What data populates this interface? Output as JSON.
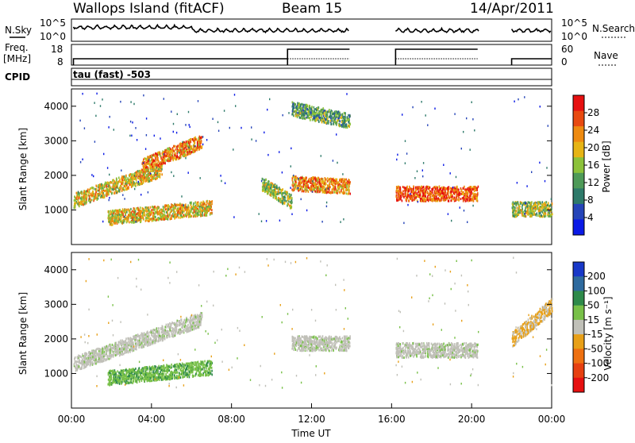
{
  "header": {
    "station": "Wallops Island (fitACF)",
    "beam": "Beam 15",
    "date": "14/Apr/2011"
  },
  "noise_panel": {
    "left_label": "N.Sky",
    "right_label": "N.Search",
    "ticks": [
      "10^5",
      "10^0"
    ]
  },
  "freq_panel": {
    "left_label_1": "Freq.",
    "left_label_2": "[MHz]",
    "left_ticks": [
      "18",
      "8"
    ],
    "right_label": "Nave",
    "right_ticks": [
      "60",
      "0"
    ]
  },
  "cpid": {
    "label": "CPID",
    "value": "tau (fast) -503"
  },
  "chart_data": [
    {
      "type": "heatmap",
      "name": "power",
      "ylabel": "Slant Range [km]",
      "ylim": [
        0,
        4500
      ],
      "yticks": [
        "1000",
        "2000",
        "3000",
        "4000"
      ],
      "xlim_hours": [
        0,
        24
      ],
      "colorbar_label": "Power [dB]",
      "colorbar_ticks": [
        "4",
        "8",
        "12",
        "16",
        "20",
        "24",
        "28"
      ],
      "colors": [
        "#0a1ae6",
        "#2544b8",
        "#2e7a6a",
        "#4e9a58",
        "#8cc23a",
        "#e6b414",
        "#ee8a10",
        "#e84a10",
        "#e61010"
      ],
      "bands": [
        {
          "t0": 0.1,
          "r0": 1300,
          "t1": 4.5,
          "r1": 2200,
          "db": 18
        },
        {
          "t0": 3.5,
          "r0": 2300,
          "t1": 6.5,
          "r1": 3000,
          "db": 20
        },
        {
          "t0": 1.8,
          "r0": 800,
          "t1": 7.0,
          "r1": 1100,
          "db": 16
        },
        {
          "t0": 9.5,
          "r0": 1800,
          "t1": 11.0,
          "r1": 1250,
          "db": 14
        },
        {
          "t0": 11.0,
          "r0": 1800,
          "t1": 13.9,
          "r1": 1700,
          "db": 22
        },
        {
          "t0": 11.0,
          "r0": 3950,
          "t1": 13.9,
          "r1": 3600,
          "db": 12
        },
        {
          "t0": 16.2,
          "r0": 1500,
          "t1": 20.3,
          "r1": 1500,
          "db": 24
        },
        {
          "t0": 22.0,
          "r0": 1050,
          "t1": 24.0,
          "r1": 1050,
          "db": 14
        }
      ]
    },
    {
      "type": "heatmap",
      "name": "velocity",
      "xlabel": "Time UT",
      "ylabel": "Slant Range [km]",
      "ylim": [
        0,
        4500
      ],
      "yticks": [
        "1000",
        "2000",
        "3000",
        "4000"
      ],
      "xticks": [
        "00:00",
        "04:00",
        "08:00",
        "12:00",
        "16:00",
        "20:00",
        "00:00"
      ],
      "xlim_hours": [
        0,
        24
      ],
      "colorbar_label": "Velocity [m s⁻¹]",
      "colorbar_ticks": [
        "200",
        "100",
        "50",
        "15",
        "-15",
        "-50",
        "-100",
        "-200"
      ],
      "colors": [
        "#1838c8",
        "#2e6a9e",
        "#2e8a4a",
        "#78c048",
        "#c0c0b8",
        "#e8a018",
        "#ee7010",
        "#e64010",
        "#e61010"
      ],
      "bands": [
        {
          "t0": 0.1,
          "r0": 1300,
          "t1": 6.5,
          "r1": 2600,
          "v": 0
        },
        {
          "t0": 1.8,
          "r0": 900,
          "t1": 7.0,
          "r1": 1200,
          "v": 60
        },
        {
          "t0": 11.0,
          "r0": 1900,
          "t1": 13.9,
          "r1": 1900,
          "v": 0
        },
        {
          "t0": 16.2,
          "r0": 1700,
          "t1": 20.3,
          "r1": 1700,
          "v": 0
        },
        {
          "t0": 22.0,
          "r0": 2000,
          "t1": 24.0,
          "r1": 3000,
          "v": -40
        }
      ]
    }
  ]
}
